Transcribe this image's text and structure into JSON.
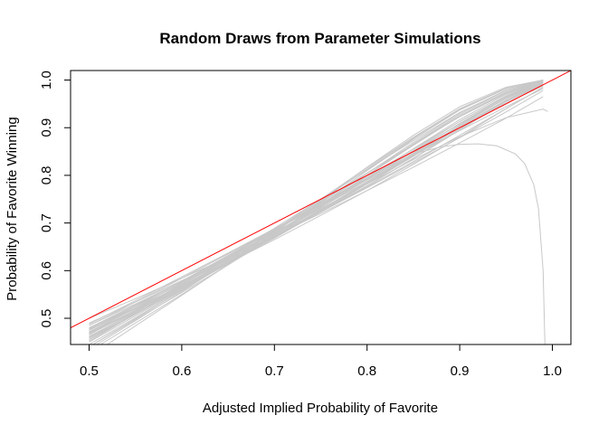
{
  "chart_data": {
    "type": "line",
    "title": "Random Draws from Parameter Simulations",
    "xlabel": "Adjusted Implied Probability of Favorite",
    "ylabel": "Probability of Favorite Winning",
    "xlim": [
      0.48,
      1.02
    ],
    "ylim": [
      0.445,
      1.02
    ],
    "x_ticks": [
      "0.5",
      "0.6",
      "0.7",
      "0.8",
      "0.9",
      "1.0"
    ],
    "y_ticks": [
      "0.5",
      "0.6",
      "0.7",
      "0.8",
      "0.9",
      "1.0"
    ],
    "grid": false,
    "legend": "none",
    "colors": {
      "simulation": "#c8c8c8",
      "reference": "#ff0000"
    },
    "reference_line": {
      "x": [
        0.48,
        1.02
      ],
      "y": [
        0.48,
        1.02
      ]
    },
    "series": [
      {
        "x": [
          0.5,
          0.55,
          0.6,
          0.65,
          0.7,
          0.75,
          0.8,
          0.85,
          0.9,
          0.95,
          0.99
        ],
        "y": [
          0.48,
          0.525,
          0.572,
          0.622,
          0.672,
          0.724,
          0.778,
          0.835,
          0.895,
          0.955,
          0.994
        ]
      },
      {
        "x": [
          0.5,
          0.55,
          0.6,
          0.65,
          0.7,
          0.75,
          0.8,
          0.85,
          0.9,
          0.95,
          0.99
        ],
        "y": [
          0.46,
          0.51,
          0.561,
          0.614,
          0.668,
          0.724,
          0.782,
          0.842,
          0.905,
          0.963,
          0.997
        ]
      },
      {
        "x": [
          0.5,
          0.55,
          0.6,
          0.65,
          0.7,
          0.75,
          0.8,
          0.85,
          0.9,
          0.95,
          0.99
        ],
        "y": [
          0.47,
          0.517,
          0.567,
          0.618,
          0.671,
          0.726,
          0.783,
          0.843,
          0.903,
          0.958,
          0.995
        ]
      },
      {
        "x": [
          0.5,
          0.55,
          0.6,
          0.65,
          0.7,
          0.75,
          0.8,
          0.85,
          0.9,
          0.95,
          0.99
        ],
        "y": [
          0.455,
          0.508,
          0.562,
          0.617,
          0.674,
          0.733,
          0.794,
          0.856,
          0.917,
          0.97,
          0.998
        ]
      },
      {
        "x": [
          0.5,
          0.55,
          0.6,
          0.65,
          0.7,
          0.75,
          0.8,
          0.85,
          0.9,
          0.95,
          0.99
        ],
        "y": [
          0.485,
          0.53,
          0.577,
          0.625,
          0.674,
          0.724,
          0.776,
          0.829,
          0.884,
          0.94,
          0.985
        ]
      },
      {
        "x": [
          0.5,
          0.55,
          0.6,
          0.65,
          0.7,
          0.75,
          0.8,
          0.85,
          0.9,
          0.95,
          0.99
        ],
        "y": [
          0.44,
          0.497,
          0.554,
          0.612,
          0.672,
          0.735,
          0.8,
          0.866,
          0.928,
          0.978,
          0.999
        ]
      },
      {
        "x": [
          0.5,
          0.55,
          0.6,
          0.65,
          0.7,
          0.75,
          0.8,
          0.85,
          0.9,
          0.95,
          0.99
        ],
        "y": [
          0.475,
          0.521,
          0.569,
          0.619,
          0.67,
          0.723,
          0.778,
          0.836,
          0.897,
          0.957,
          0.996
        ]
      },
      {
        "x": [
          0.5,
          0.55,
          0.6,
          0.65,
          0.7,
          0.75,
          0.8,
          0.85,
          0.9,
          0.95,
          0.99
        ],
        "y": [
          0.462,
          0.513,
          0.565,
          0.618,
          0.672,
          0.728,
          0.786,
          0.847,
          0.909,
          0.965,
          0.997
        ]
      },
      {
        "x": [
          0.5,
          0.55,
          0.6,
          0.65,
          0.7,
          0.75,
          0.8,
          0.85,
          0.9,
          0.95,
          0.99
        ],
        "y": [
          0.45,
          0.505,
          0.56,
          0.617,
          0.676,
          0.737,
          0.8,
          0.863,
          0.924,
          0.974,
          0.999
        ]
      },
      {
        "x": [
          0.5,
          0.55,
          0.6,
          0.65,
          0.7,
          0.75,
          0.8,
          0.85,
          0.9,
          0.95,
          0.99
        ],
        "y": [
          0.49,
          0.534,
          0.579,
          0.626,
          0.674,
          0.723,
          0.774,
          0.826,
          0.879,
          0.933,
          0.978
        ]
      },
      {
        "x": [
          0.5,
          0.55,
          0.6,
          0.65,
          0.7,
          0.75,
          0.8,
          0.85,
          0.9,
          0.95,
          0.99
        ],
        "y": [
          0.468,
          0.517,
          0.567,
          0.619,
          0.673,
          0.728,
          0.785,
          0.844,
          0.905,
          0.962,
          0.996
        ]
      },
      {
        "x": [
          0.5,
          0.55,
          0.6,
          0.65,
          0.7,
          0.75,
          0.8,
          0.85,
          0.9,
          0.95,
          0.99
        ],
        "y": [
          0.458,
          0.51,
          0.564,
          0.618,
          0.674,
          0.732,
          0.791,
          0.852,
          0.913,
          0.967,
          0.998
        ]
      },
      {
        "x": [
          0.5,
          0.55,
          0.6,
          0.65,
          0.7,
          0.75,
          0.8,
          0.85,
          0.9,
          0.95,
          0.99
        ],
        "y": [
          0.445,
          0.501,
          0.558,
          0.616,
          0.677,
          0.739,
          0.804,
          0.869,
          0.931,
          0.979,
          0.999
        ]
      },
      {
        "x": [
          0.5,
          0.55,
          0.6,
          0.65,
          0.7,
          0.75,
          0.8,
          0.85,
          0.9,
          0.95,
          0.99
        ],
        "y": [
          0.472,
          0.52,
          0.569,
          0.62,
          0.672,
          0.726,
          0.782,
          0.84,
          0.9,
          0.958,
          0.994
        ]
      },
      {
        "x": [
          0.5,
          0.55,
          0.6,
          0.65,
          0.7,
          0.75,
          0.8,
          0.85,
          0.9,
          0.95,
          0.99
        ],
        "y": [
          0.48,
          0.528,
          0.577,
          0.628,
          0.68,
          0.733,
          0.787,
          0.843,
          0.9,
          0.955,
          0.99
        ]
      },
      {
        "x": [
          0.5,
          0.55,
          0.6,
          0.65,
          0.7,
          0.75,
          0.8,
          0.85,
          0.9,
          0.95,
          0.99
        ],
        "y": [
          0.465,
          0.518,
          0.571,
          0.625,
          0.68,
          0.736,
          0.792,
          0.85,
          0.908,
          0.962,
          0.995
        ]
      },
      {
        "x": [
          0.5,
          0.55,
          0.6,
          0.65,
          0.7,
          0.75,
          0.8,
          0.85,
          0.9,
          0.95,
          0.99
        ],
        "y": [
          0.452,
          0.509,
          0.566,
          0.624,
          0.683,
          0.743,
          0.804,
          0.865,
          0.925,
          0.975,
          0.999
        ]
      },
      {
        "x": [
          0.5,
          0.55,
          0.6,
          0.65,
          0.7,
          0.75,
          0.8,
          0.85,
          0.9,
          0.95,
          0.99
        ],
        "y": [
          0.43,
          0.49,
          0.55,
          0.612,
          0.676,
          0.742,
          0.81,
          0.876,
          0.937,
          0.982,
          1.0
        ]
      },
      {
        "x": [
          0.5,
          0.55,
          0.6,
          0.65,
          0.7,
          0.75,
          0.8,
          0.85,
          0.9,
          0.95,
          0.99
        ],
        "y": [
          0.42,
          0.484,
          0.548,
          0.613,
          0.68,
          0.748,
          0.817,
          0.884,
          0.944,
          0.985,
          1.0
        ]
      },
      {
        "x": [
          0.5,
          0.55,
          0.6,
          0.65,
          0.7,
          0.75,
          0.8,
          0.85,
          0.9,
          0.95,
          0.99
        ],
        "y": [
          0.5,
          0.541,
          0.584,
          0.628,
          0.673,
          0.72,
          0.768,
          0.817,
          0.868,
          0.92,
          0.965
        ]
      },
      {
        "x": [
          0.5,
          0.55,
          0.6,
          0.65,
          0.7,
          0.75,
          0.8,
          0.85,
          0.9,
          0.95,
          0.99
        ],
        "y": [
          0.485,
          0.534,
          0.584,
          0.635,
          0.687,
          0.739,
          0.792,
          0.846,
          0.9,
          0.952,
          0.988
        ]
      },
      {
        "x": [
          0.5,
          0.55,
          0.6,
          0.65,
          0.7,
          0.75,
          0.8,
          0.85,
          0.9,
          0.95,
          0.99
        ],
        "y": [
          0.476,
          0.526,
          0.577,
          0.63,
          0.684,
          0.738,
          0.794,
          0.851,
          0.908,
          0.961,
          0.995
        ]
      },
      {
        "x": [
          0.5,
          0.55,
          0.6,
          0.65,
          0.7,
          0.75,
          0.8,
          0.85,
          0.9,
          0.95,
          0.99
        ],
        "y": [
          0.435,
          0.495,
          0.556,
          0.618,
          0.682,
          0.747,
          0.813,
          0.878,
          0.938,
          0.982,
          0.999
        ]
      },
      {
        "x": [
          0.5,
          0.55,
          0.6,
          0.65,
          0.7,
          0.75,
          0.8,
          0.85,
          0.9,
          0.95,
          0.99
        ],
        "y": [
          0.47,
          0.522,
          0.575,
          0.629,
          0.684,
          0.74,
          0.797,
          0.855,
          0.913,
          0.966,
          0.997
        ]
      },
      {
        "x": [
          0.5,
          0.55,
          0.6,
          0.65,
          0.7,
          0.75,
          0.8,
          0.85,
          0.9,
          0.95,
          0.99
        ],
        "y": [
          0.455,
          0.512,
          0.57,
          0.629,
          0.689,
          0.75,
          0.812,
          0.873,
          0.932,
          0.978,
          0.999
        ]
      },
      {
        "x": [
          0.5,
          0.55,
          0.6,
          0.65,
          0.7,
          0.75,
          0.8,
          0.85,
          0.9,
          0.95,
          0.99
        ],
        "y": [
          0.478,
          0.522,
          0.568,
          0.616,
          0.665,
          0.716,
          0.768,
          0.823,
          0.88,
          0.94,
          0.985
        ]
      },
      {
        "x": [
          0.5,
          0.55,
          0.6,
          0.65,
          0.7,
          0.75,
          0.8,
          0.85,
          0.9,
          0.95,
          0.99
        ],
        "y": [
          0.466,
          0.515,
          0.565,
          0.617,
          0.67,
          0.725,
          0.782,
          0.84,
          0.9,
          0.955,
          0.992
        ]
      },
      {
        "x": [
          0.5,
          0.55,
          0.6,
          0.65,
          0.7,
          0.75,
          0.8,
          0.85,
          0.9,
          0.95,
          0.99
        ],
        "y": [
          0.46,
          0.515,
          0.571,
          0.628,
          0.686,
          0.745,
          0.805,
          0.865,
          0.923,
          0.972,
          0.998
        ]
      },
      {
        "x": [
          0.5,
          0.55,
          0.6,
          0.65,
          0.7,
          0.75,
          0.8,
          0.85,
          0.9,
          0.95,
          0.99
        ],
        "y": [
          0.488,
          0.537,
          0.587,
          0.637,
          0.688,
          0.739,
          0.79,
          0.842,
          0.894,
          0.944,
          0.982
        ]
      },
      {
        "x": [
          0.5,
          0.55,
          0.6,
          0.65,
          0.7,
          0.75,
          0.8,
          0.85,
          0.9,
          0.95,
          0.99
        ],
        "y": [
          0.44,
          0.499,
          0.559,
          0.621,
          0.685,
          0.75,
          0.816,
          0.88,
          0.94,
          0.983,
          1.0
        ]
      },
      {
        "x": [
          0.5,
          0.55,
          0.6,
          0.65,
          0.7,
          0.75,
          0.8,
          0.85,
          0.9,
          0.95,
          0.99,
          0.995
        ],
        "y": [
          0.47,
          0.522,
          0.574,
          0.626,
          0.678,
          0.73,
          0.782,
          0.833,
          0.881,
          0.921,
          0.939,
          0.934
        ]
      },
      {
        "x": [
          0.5,
          0.55,
          0.6,
          0.65,
          0.7,
          0.75,
          0.8,
          0.85,
          0.88,
          0.9,
          0.92,
          0.94,
          0.96,
          0.97,
          0.98,
          0.985,
          0.99,
          0.992
        ],
        "y": [
          0.475,
          0.525,
          0.578,
          0.632,
          0.687,
          0.741,
          0.794,
          0.845,
          0.86,
          0.865,
          0.866,
          0.862,
          0.845,
          0.825,
          0.78,
          0.73,
          0.6,
          0.44
        ]
      }
    ]
  }
}
